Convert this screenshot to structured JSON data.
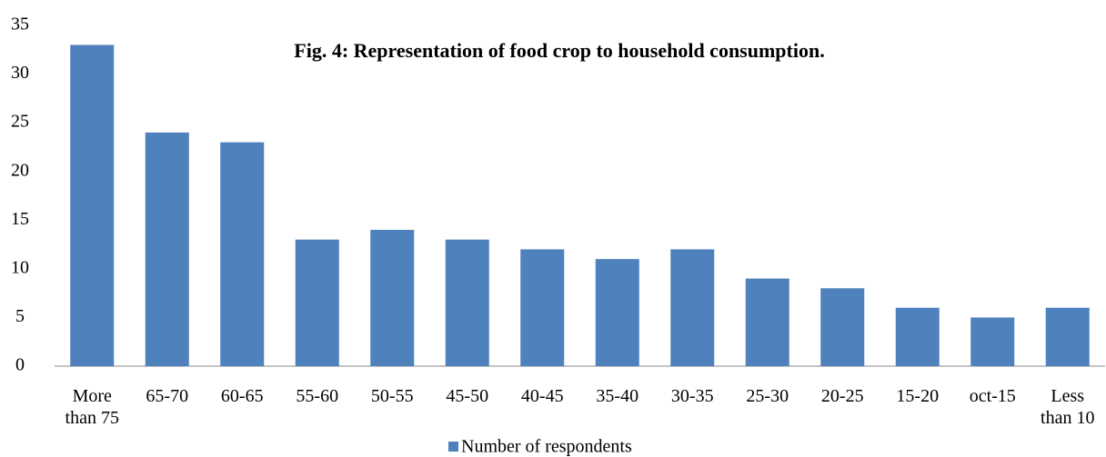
{
  "chart_data": {
    "type": "bar",
    "title": "Fig. 4: Representation of food crop to household consumption.",
    "categories": [
      "More than 75",
      "65-70",
      "60-65",
      "55-60",
      "50-55",
      "45-50",
      "40-45",
      "35-40",
      "30-35",
      "25-30",
      "20-25",
      "15-20",
      "oct-15",
      "Less than 10"
    ],
    "series": [
      {
        "name": "Number of respondents",
        "color": "#4f81bd",
        "values": [
          33,
          24,
          23,
          13,
          14,
          13,
          12,
          11,
          12,
          9,
          8,
          6,
          5,
          6
        ]
      }
    ],
    "ylim": [
      0,
      35
    ],
    "yticks": [
      0,
      5,
      10,
      15,
      20,
      25,
      30,
      35
    ],
    "grid": false,
    "legend": "bottom"
  }
}
